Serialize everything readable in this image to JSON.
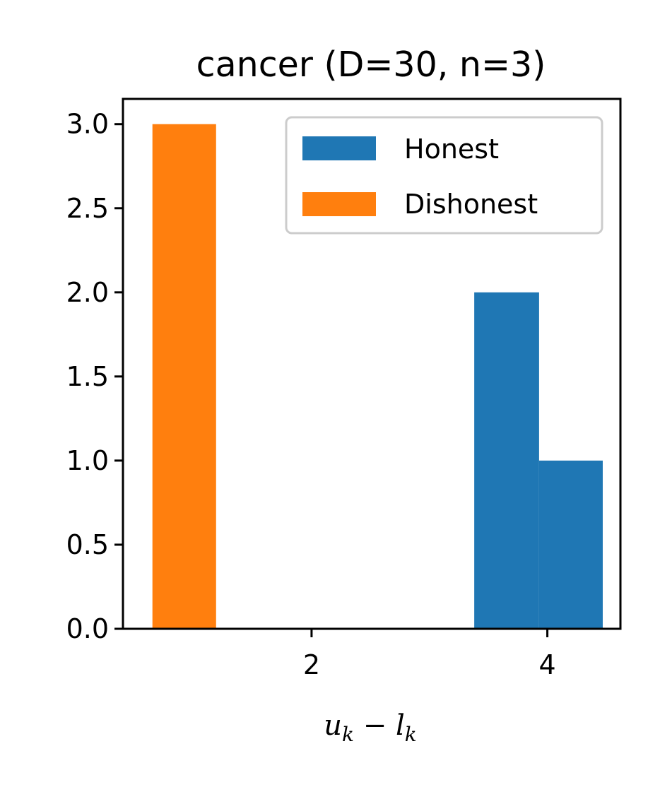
{
  "chart_data": {
    "type": "bar",
    "title": "cancer (D=30, n=3)",
    "xlabel": "u_k − l_k",
    "xlabel_parts": {
      "u": "u",
      "usub": "k",
      "minus": " − ",
      "l": "l",
      "lsub": "k"
    },
    "ylabel": "",
    "xlim": [
      0.4,
      4.62
    ],
    "ylim": [
      0,
      3.15
    ],
    "xticks": [
      2,
      4
    ],
    "xtick_labels": [
      "2",
      "4"
    ],
    "yticks": [
      0.0,
      0.5,
      1.0,
      1.5,
      2.0,
      2.5,
      3.0
    ],
    "ytick_labels": [
      "0.0",
      "0.5",
      "1.0",
      "1.5",
      "2.0",
      "2.5",
      "3.0"
    ],
    "grid": false,
    "legend_position": "top-right",
    "series": [
      {
        "name": "Honest",
        "color": "#1f77b4",
        "bins": [
          {
            "x0": 3.38,
            "x1": 3.93,
            "count": 2
          },
          {
            "x0": 3.93,
            "x1": 4.47,
            "count": 1
          }
        ]
      },
      {
        "name": "Dishonest",
        "color": "#ff7f0e",
        "bins": [
          {
            "x0": 0.65,
            "x1": 1.19,
            "count": 3
          }
        ]
      }
    ]
  }
}
